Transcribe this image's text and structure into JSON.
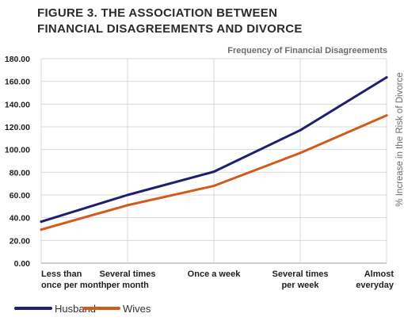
{
  "chart_data": {
    "type": "line",
    "title_lines": [
      "FIGURE 3. THE ASSOCIATION BETWEEN",
      "FINANCIAL DISAGREEMENTS AND DIVORCE"
    ],
    "subtitle": "Frequency of Financial Disagreements",
    "xlabel": "",
    "ylabel": "% Increase in the Risk of Divorce",
    "categories": [
      [
        "Less than",
        "once per month"
      ],
      [
        "Several times",
        "per month"
      ],
      [
        "Once a week"
      ],
      [
        "Several times",
        "per week"
      ],
      [
        "Almost",
        "everyday"
      ]
    ],
    "ylim": [
      0,
      180
    ],
    "yticks": [
      "0.00",
      "20.00",
      "40.00",
      "60.00",
      "80.00",
      "100.00",
      "120.00",
      "140.00",
      "160.00",
      "180.00"
    ],
    "grid": true,
    "legend_position": "bottom-left",
    "series": [
      {
        "name": "Husband",
        "color": "#1f1f6e",
        "values": [
          36.5,
          60,
          80.5,
          117,
          163.5
        ]
      },
      {
        "name": "Wives",
        "color": "#d35a1a",
        "values": [
          29.5,
          51,
          68,
          97,
          130
        ]
      }
    ]
  }
}
